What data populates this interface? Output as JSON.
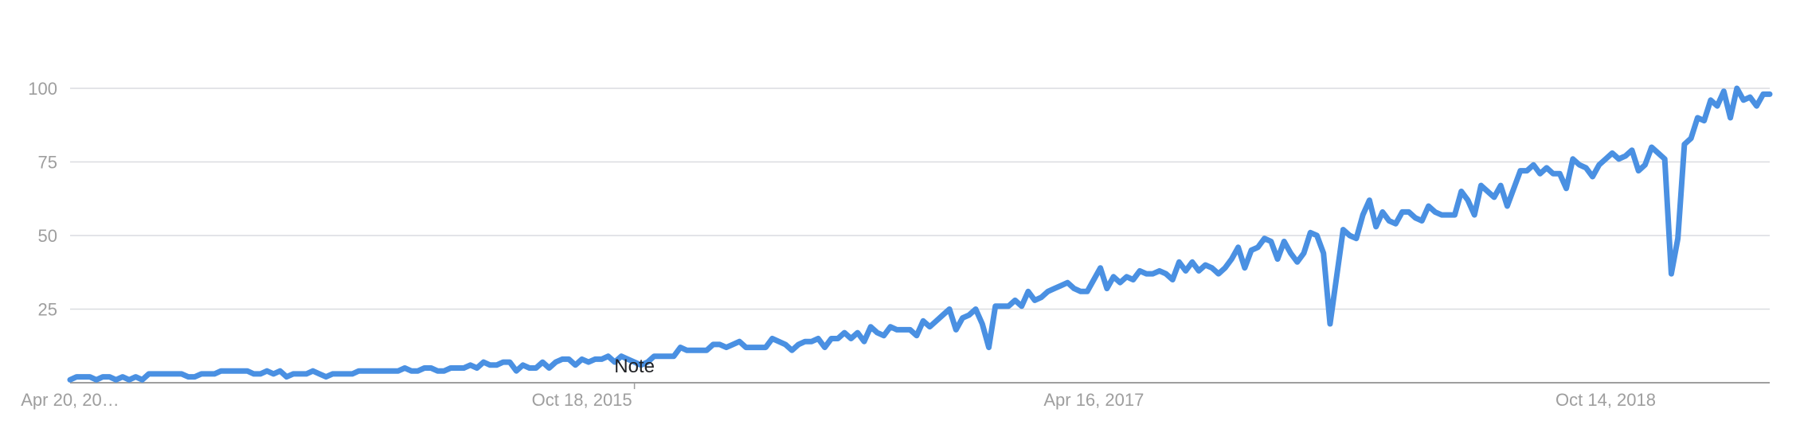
{
  "chart_data": {
    "type": "line",
    "title": "",
    "xlabel": "",
    "ylabel": "",
    "ylim": [
      0,
      100
    ],
    "yticks": [
      25,
      50,
      75,
      100
    ],
    "grid": true,
    "x_tick_labels": [
      "Apr 20, 20…",
      "Oct 18, 2015",
      "Apr 16, 2017",
      "Oct 14, 2018"
    ],
    "x_tick_index": [
      0,
      78,
      156,
      234
    ],
    "annotation": {
      "text": "Note",
      "index": 86
    },
    "series": [
      {
        "color": "#4a90e2",
        "values": [
          1,
          2,
          2,
          2,
          1,
          2,
          2,
          1,
          2,
          1,
          2,
          1,
          3,
          3,
          3,
          3,
          3,
          3,
          2,
          2,
          3,
          3,
          3,
          4,
          4,
          4,
          4,
          4,
          3,
          3,
          4,
          3,
          4,
          2,
          3,
          3,
          3,
          4,
          3,
          2,
          3,
          3,
          3,
          3,
          4,
          4,
          4,
          4,
          4,
          4,
          4,
          5,
          4,
          4,
          5,
          5,
          4,
          4,
          5,
          5,
          5,
          6,
          5,
          7,
          6,
          6,
          7,
          7,
          4,
          6,
          5,
          5,
          7,
          5,
          7,
          8,
          8,
          6,
          8,
          7,
          8,
          8,
          9,
          7,
          9,
          8,
          7,
          6,
          7,
          9,
          9,
          9,
          9,
          12,
          11,
          11,
          11,
          11,
          13,
          13,
          12,
          13,
          14,
          12,
          12,
          12,
          12,
          15,
          14,
          13,
          11,
          13,
          14,
          14,
          15,
          12,
          15,
          15,
          17,
          15,
          17,
          14,
          19,
          17,
          16,
          19,
          18,
          18,
          18,
          16,
          21,
          19,
          21,
          23,
          25,
          18,
          22,
          23,
          25,
          20,
          12,
          26,
          26,
          26,
          28,
          26,
          31,
          28,
          29,
          31,
          32,
          33,
          34,
          32,
          31,
          31,
          35,
          39,
          32,
          36,
          34,
          36,
          35,
          38,
          37,
          37,
          38,
          37,
          35,
          41,
          38,
          41,
          38,
          40,
          39,
          37,
          39,
          42,
          46,
          39,
          45,
          46,
          49,
          48,
          42,
          48,
          44,
          41,
          44,
          51,
          50,
          44,
          20,
          36,
          52,
          50,
          49,
          57,
          62,
          53,
          58,
          55,
          54,
          58,
          58,
          56,
          55,
          60,
          58,
          57,
          57,
          57,
          65,
          62,
          57,
          67,
          65,
          63,
          67,
          60,
          66,
          72,
          72,
          74,
          71,
          73,
          71,
          71,
          66,
          76,
          74,
          73,
          70,
          74,
          76,
          78,
          76,
          77,
          79,
          72,
          74,
          80,
          78,
          76,
          37,
          49,
          81,
          83,
          90,
          89,
          96,
          94,
          99,
          90,
          100,
          96,
          97,
          94,
          98,
          98
        ]
      }
    ]
  }
}
